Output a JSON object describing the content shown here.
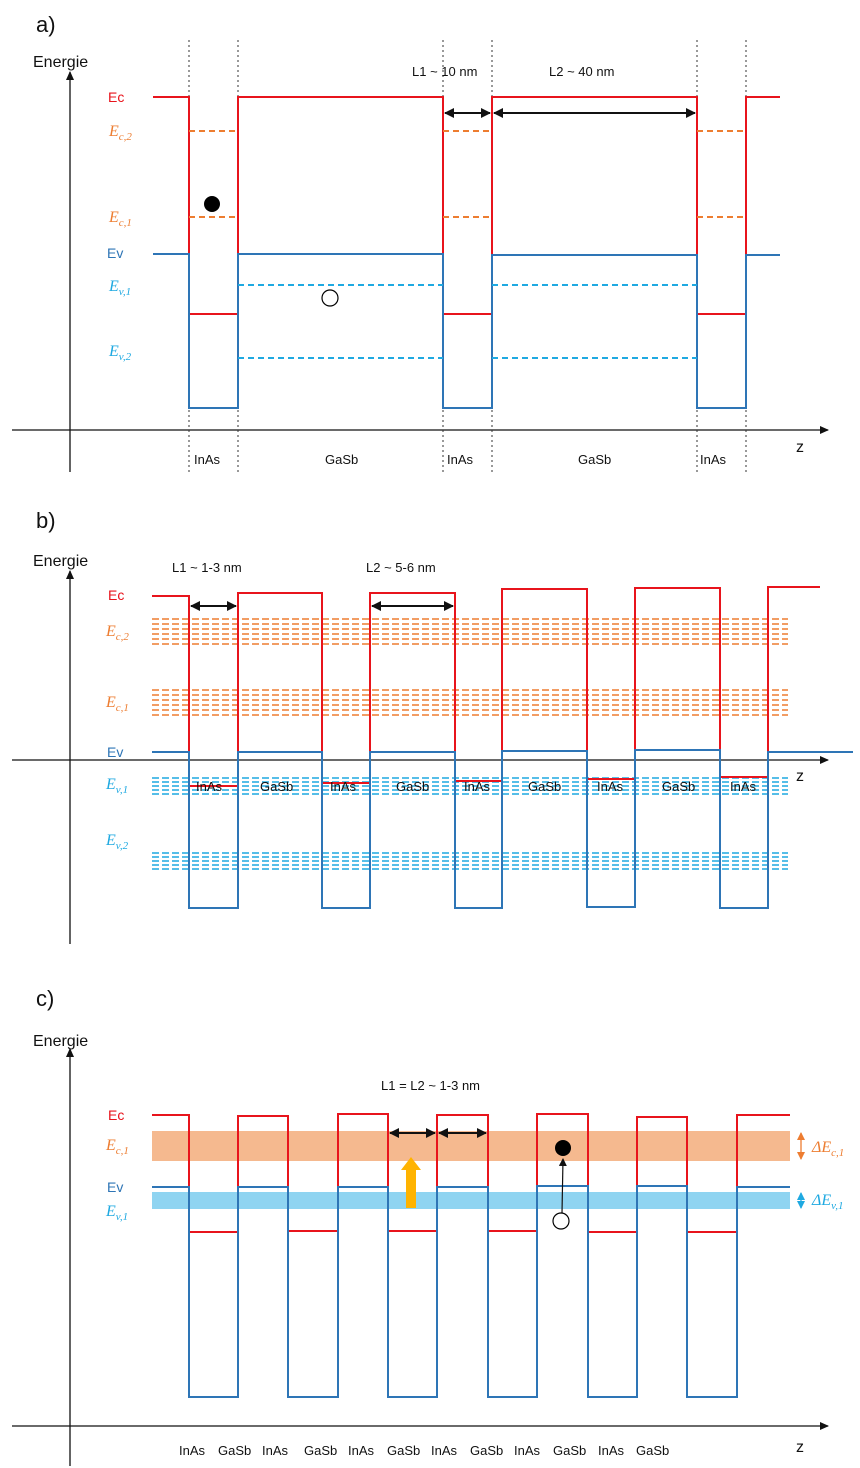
{
  "colors": {
    "conduction": "#e8141c",
    "valence": "#2e75b6",
    "conduction_level": "#ed7d31",
    "valence_level": "#1fa9e1",
    "arrow_absorption": "#ffb300"
  },
  "panel_a": {
    "label": "a)",
    "y_axis": "Energie",
    "x_axis": "z",
    "ec": "Ec",
    "ev": "Ev",
    "level_ec2": {
      "letter": "E",
      "sub": "c,2"
    },
    "level_ec1": {
      "letter": "E",
      "sub": "c,1"
    },
    "level_ev1": {
      "letter": "E",
      "sub": "v,1"
    },
    "level_ev2": {
      "letter": "E",
      "sub": "v,2"
    },
    "dim_l1": "L1 ~ 10 nm",
    "dim_l2": "L2 ~ 40 nm",
    "layers": [
      "InAs",
      "GaSb",
      "InAs",
      "GaSb",
      "InAs"
    ]
  },
  "panel_b": {
    "label": "b)",
    "y_axis": "Energie",
    "x_axis": "z",
    "ec": "Ec",
    "ev": "Ev",
    "level_ec2": {
      "letter": "E",
      "sub": "c,2"
    },
    "level_ec1": {
      "letter": "E",
      "sub": "c,1"
    },
    "level_ev1": {
      "letter": "E",
      "sub": "v,1"
    },
    "level_ev2": {
      "letter": "E",
      "sub": "v,2"
    },
    "dim_l1": "L1 ~ 1-3 nm",
    "dim_l2": "L2 ~ 5-6 nm",
    "layers": [
      "InAs",
      "GaSb",
      "InAs",
      "GaSb",
      "InAs",
      "GaSb",
      "InAs",
      "GaSb",
      "InAs"
    ]
  },
  "panel_c": {
    "label": "c)",
    "y_axis": "Energie",
    "x_axis": "z",
    "ec": "Ec",
    "ev": "Ev",
    "level_ec1": {
      "letter": "E",
      "sub": "c,1"
    },
    "level_ev1": {
      "letter": "E",
      "sub": "v,1"
    },
    "dim_l": "L1 = L2 ~ 1-3 nm",
    "band_ec": {
      "letter": "ΔE",
      "sub": "c,1"
    },
    "band_ev": {
      "letter": "ΔE",
      "sub": "v,1"
    },
    "layers": [
      "InAs",
      "GaSb",
      "InAs",
      "GaSb",
      "InAs",
      "GaSb",
      "InAs",
      "GaSb",
      "InAs",
      "GaSb",
      "InAs",
      "GaSb"
    ]
  }
}
